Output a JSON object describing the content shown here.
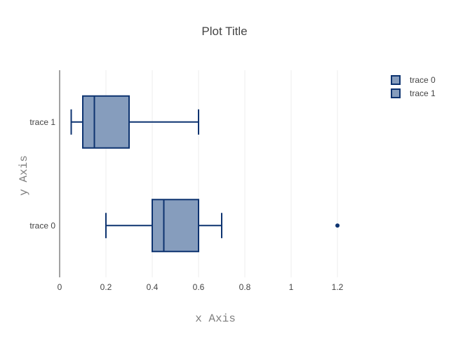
{
  "chart_data": {
    "type": "box",
    "orientation": "horizontal",
    "title": "Plot Title",
    "xlabel": "x Axis",
    "ylabel": "y Axis",
    "xlim": [
      0,
      1.4
    ],
    "x_ticks": [
      0,
      0.2,
      0.4,
      0.6,
      0.8,
      1,
      1.2
    ],
    "x_tick_labels": [
      "0",
      "0.2",
      "0.4",
      "0.6",
      "0.8",
      "1",
      "1.2"
    ],
    "categories": [
      "trace 0",
      "trace 1"
    ],
    "grid": "vertical",
    "legend_position": "top-right",
    "series": [
      {
        "name": "trace 0",
        "whisker_low": 0.2,
        "q1": 0.4,
        "median": 0.45,
        "q3": 0.6,
        "whisker_high": 0.7,
        "outliers": [
          1.2
        ]
      },
      {
        "name": "trace 1",
        "whisker_low": 0.05,
        "q1": 0.1,
        "median": 0.15,
        "q3": 0.3,
        "whisker_high": 0.6,
        "outliers": []
      }
    ],
    "colors": {
      "fill": "#869dbd",
      "line": "#0d3370",
      "grid": "#eeeeee",
      "axis_line": "#444444",
      "title_text": "#444444",
      "axis_title_text": "#7f7f7f"
    }
  }
}
